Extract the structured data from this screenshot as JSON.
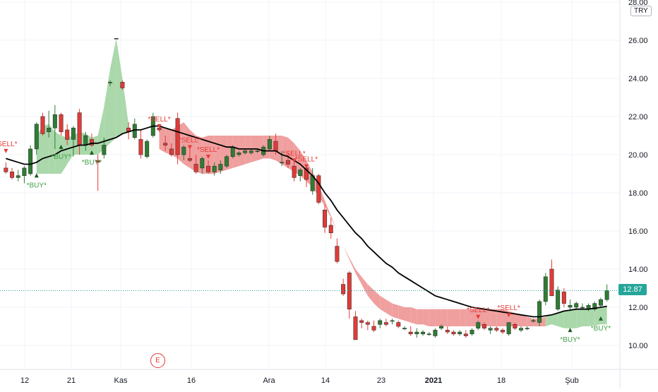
{
  "currency_badge": "TRY",
  "earnings_marker": "E",
  "colors": {
    "up": "#2e7d32",
    "down": "#e53935",
    "sell": "#e53935",
    "buy": "#43a047",
    "bull_band": "#a5d6a7",
    "bear_band": "#ef9a9a",
    "ma": "#000000",
    "price_tag": "#26a69a"
  },
  "chart_data": {
    "type": "candlestick",
    "title": "",
    "currency": "TRY",
    "ylim": [
      9.3,
      28.0
    ],
    "y_ticks": [
      "10.00",
      "12.00",
      "14.00",
      "16.00",
      "18.00",
      "20.00",
      "22.00",
      "24.00",
      "26.00",
      "28.00"
    ],
    "x_ticks": [
      "12",
      "21",
      "Kas",
      "16",
      "Ara",
      "14",
      "23",
      "2021",
      "18",
      "Şub"
    ],
    "bold_x_ticks": [
      "2021"
    ],
    "last_price": "12.87",
    "last_price_value": 12.87,
    "grid": true,
    "candles": [
      [
        19.3,
        19.6,
        19.0,
        19.1
      ],
      [
        19.1,
        19.3,
        18.7,
        18.8
      ],
      [
        18.8,
        19.2,
        18.6,
        18.9
      ],
      [
        18.9,
        19.4,
        18.5,
        19.3
      ],
      [
        19.0,
        20.5,
        18.9,
        20.3
      ],
      [
        20.3,
        21.7,
        20.0,
        21.6
      ],
      [
        22.0,
        22.2,
        21.0,
        21.1
      ],
      [
        21.2,
        22.3,
        20.9,
        21.4
      ],
      [
        21.4,
        22.6,
        20.3,
        22.1
      ],
      [
        22.1,
        22.2,
        21.0,
        21.2
      ],
      [
        21.3,
        21.6,
        20.5,
        20.8
      ],
      [
        20.8,
        21.5,
        19.9,
        21.4
      ],
      [
        22.2,
        22.4,
        20.0,
        20.5
      ],
      [
        20.5,
        21.2,
        20.2,
        21.0
      ],
      [
        20.8,
        21.1,
        20.4,
        20.5
      ],
      [
        19.7,
        20.0,
        18.1,
        19.6
      ],
      [
        20.0,
        20.9,
        19.8,
        20.5
      ],
      [
        23.8,
        23.9,
        23.6,
        23.8
      ],
      [
        26.1,
        26.1,
        26.1,
        26.1
      ],
      [
        23.8,
        23.9,
        23.4,
        23.5
      ],
      [
        21.4,
        21.7,
        20.8,
        21.2
      ],
      [
        20.9,
        21.9,
        20.8,
        21.6
      ],
      [
        20.8,
        21.3,
        19.8,
        20.0
      ],
      [
        19.9,
        20.8,
        19.8,
        20.7
      ],
      [
        21.0,
        22.2,
        20.9,
        22.0
      ],
      [
        21.4,
        21.6,
        21.2,
        21.3
      ],
      [
        20.6,
        21.0,
        20.2,
        20.5
      ],
      [
        20.3,
        20.6,
        19.9,
        20.0
      ],
      [
        21.9,
        22.2,
        19.5,
        20.0
      ],
      [
        20.0,
        20.5,
        19.7,
        20.4
      ],
      [
        19.8,
        20.5,
        19.6,
        19.7
      ],
      [
        19.5,
        20.0,
        19.0,
        19.1
      ],
      [
        19.3,
        19.9,
        19.0,
        19.8
      ],
      [
        19.4,
        19.7,
        19.0,
        19.1
      ],
      [
        19.1,
        19.6,
        18.9,
        19.4
      ],
      [
        19.2,
        19.7,
        19.0,
        19.5
      ],
      [
        19.4,
        20.0,
        19.3,
        19.9
      ],
      [
        19.9,
        20.5,
        19.8,
        20.4
      ],
      [
        20.0,
        20.2,
        19.9,
        20.1
      ],
      [
        20.1,
        20.3,
        20.0,
        20.2
      ],
      [
        20.1,
        20.3,
        20.0,
        20.2
      ],
      [
        20.2,
        20.3,
        20.1,
        20.2
      ],
      [
        20.0,
        20.5,
        19.9,
        20.4
      ],
      [
        20.3,
        21.0,
        20.2,
        20.8
      ],
      [
        20.7,
        21.1,
        20.0,
        20.2
      ],
      [
        19.6,
        20.2,
        19.4,
        19.6
      ],
      [
        19.7,
        20.1,
        19.3,
        19.5
      ],
      [
        19.4,
        19.7,
        18.6,
        18.8
      ],
      [
        18.9,
        19.3,
        18.6,
        19.2
      ],
      [
        19.3,
        19.5,
        18.3,
        18.7
      ],
      [
        18.1,
        19.3,
        17.9,
        18.9
      ],
      [
        18.9,
        19.0,
        17.4,
        17.5
      ],
      [
        17.1,
        17.4,
        15.9,
        16.2
      ],
      [
        16.3,
        16.7,
        15.6,
        15.9
      ],
      [
        15.2,
        15.6,
        14.3,
        14.4
      ],
      [
        13.2,
        13.5,
        12.6,
        12.7
      ],
      [
        13.8,
        13.9,
        11.4,
        11.9
      ],
      [
        11.5,
        11.8,
        10.3,
        10.3
      ],
      [
        11.3,
        11.4,
        10.9,
        11.2
      ],
      [
        11.2,
        11.3,
        10.8,
        11.1
      ],
      [
        11.0,
        11.3,
        10.7,
        10.8
      ],
      [
        11.1,
        11.4,
        10.9,
        11.3
      ],
      [
        11.2,
        11.4,
        11.0,
        11.1
      ],
      [
        11.3,
        11.4,
        11.1,
        11.3
      ],
      [
        11.2,
        11.3,
        10.9,
        11.0
      ],
      [
        10.9,
        11.0,
        10.8,
        10.9
      ],
      [
        10.7,
        11.0,
        10.5,
        10.6
      ],
      [
        10.6,
        10.9,
        10.4,
        10.7
      ],
      [
        10.6,
        10.8,
        10.5,
        10.7
      ],
      [
        10.6,
        10.7,
        10.5,
        10.6
      ],
      [
        10.5,
        10.9,
        10.4,
        10.8
      ],
      [
        10.9,
        11.1,
        10.8,
        11.0
      ],
      [
        10.8,
        11.0,
        10.6,
        10.7
      ],
      [
        10.7,
        10.8,
        10.5,
        10.6
      ],
      [
        10.6,
        10.8,
        10.5,
        10.7
      ],
      [
        10.6,
        10.8,
        10.4,
        10.5
      ],
      [
        10.6,
        10.9,
        10.5,
        10.8
      ],
      [
        10.9,
        11.3,
        10.8,
        11.2
      ],
      [
        11.1,
        11.2,
        10.8,
        10.9
      ],
      [
        10.8,
        11.0,
        10.6,
        10.9
      ],
      [
        10.9,
        11.0,
        10.7,
        10.8
      ],
      [
        10.8,
        10.9,
        10.6,
        10.7
      ],
      [
        10.6,
        11.2,
        10.5,
        11.2
      ],
      [
        11.1,
        11.2,
        10.8,
        10.9
      ],
      [
        10.8,
        11.0,
        10.7,
        10.9
      ],
      [
        10.9,
        11.0,
        10.8,
        10.9
      ],
      [
        11.3,
        11.4,
        11.2,
        11.3
      ],
      [
        11.2,
        12.4,
        11.0,
        12.3
      ],
      [
        12.3,
        13.8,
        12.1,
        13.6
      ],
      [
        14.0,
        14.5,
        12.6,
        12.6
      ],
      [
        11.9,
        13.1,
        11.8,
        12.9
      ],
      [
        12.8,
        13.0,
        12.0,
        12.2
      ],
      [
        12.0,
        12.4,
        11.8,
        12.1
      ],
      [
        12.0,
        12.3,
        11.9,
        12.2
      ],
      [
        12.0,
        12.2,
        11.9,
        12.0
      ],
      [
        11.9,
        12.2,
        11.8,
        12.1
      ],
      [
        11.9,
        12.3,
        11.8,
        12.2
      ],
      [
        12.1,
        12.5,
        12.0,
        12.4
      ],
      [
        12.4,
        13.2,
        12.3,
        12.87
      ]
    ],
    "moving_average": [
      19.8,
      19.7,
      19.6,
      19.5,
      19.5,
      19.6,
      19.8,
      19.9,
      20.0,
      20.2,
      20.3,
      20.4,
      20.5,
      20.5,
      20.6,
      20.6,
      20.7,
      20.8,
      20.9,
      21.1,
      21.2,
      21.3,
      21.3,
      21.4,
      21.5,
      21.5,
      21.4,
      21.3,
      21.2,
      21.1,
      21.0,
      20.9,
      20.8,
      20.7,
      20.6,
      20.5,
      20.4,
      20.4,
      20.3,
      20.3,
      20.3,
      20.3,
      20.2,
      20.2,
      20.2,
      20.0,
      19.9,
      19.7,
      19.5,
      19.2,
      18.9,
      18.5,
      18.0,
      17.6,
      17.1,
      16.7,
      16.3,
      15.9,
      15.6,
      15.2,
      14.9,
      14.6,
      14.3,
      14.1,
      13.8,
      13.6,
      13.4,
      13.2,
      13.0,
      12.8,
      12.6,
      12.5,
      12.4,
      12.3,
      12.2,
      12.1,
      12.0,
      11.95,
      11.9,
      11.85,
      11.8,
      11.75,
      11.7,
      11.65,
      11.6,
      11.55,
      11.5,
      11.5,
      11.55,
      11.6,
      11.7,
      11.8,
      11.85,
      11.9,
      11.9,
      11.9,
      11.95,
      12.0,
      12.05
    ],
    "band_upper": [
      20.8,
      20.6,
      20.4,
      20.3,
      20.2,
      21.0,
      21.5,
      21.6,
      21.2,
      21.0,
      20.9,
      21.0,
      21.2,
      21.1,
      20.9,
      21.0,
      22.5,
      24.5,
      26.1,
      24.0,
      21.6,
      21.6,
      21.5,
      21.5,
      21.7,
      21.6,
      21.4,
      21.3,
      21.5,
      21.7,
      21.3,
      21.0,
      20.9,
      21.0,
      21.0,
      21.0,
      21.0,
      21.0,
      21.0,
      21.0,
      21.0,
      21.0,
      21.0,
      21.0,
      21.0,
      21.0,
      20.9,
      20.6,
      20.2,
      19.7,
      19.1,
      18.4,
      17.6,
      16.8,
      16.0,
      15.2,
      14.6,
      14.0,
      13.6,
      13.2,
      12.9,
      12.6,
      12.4,
      12.2,
      12.1,
      12.0,
      12.0,
      11.9,
      11.9,
      11.9,
      11.9,
      11.9,
      11.9,
      11.9,
      11.9,
      11.9,
      11.9,
      11.9,
      11.9,
      11.9,
      11.9,
      11.9,
      11.8,
      11.7,
      11.6,
      11.5,
      11.4,
      11.4,
      11.5,
      11.6,
      11.7,
      11.8,
      11.85,
      11.9,
      11.9,
      11.9,
      11.95,
      12.0,
      12.05
    ],
    "band_lower": [
      19.2,
      19.0,
      18.8,
      18.8,
      18.8,
      19.0,
      19.0,
      19.0,
      19.0,
      19.0,
      19.5,
      20.0,
      20.0,
      20.0,
      20.0,
      20.0,
      20.3,
      20.6,
      20.9,
      21.1,
      21.2,
      21.3,
      21.1,
      20.8,
      20.5,
      20.3,
      20.1,
      20.0,
      19.8,
      19.5,
      19.3,
      19.1,
      19.0,
      19.0,
      19.0,
      19.1,
      19.2,
      19.3,
      19.4,
      19.5,
      19.6,
      19.7,
      19.8,
      19.8,
      19.7,
      19.5,
      19.3,
      19.1,
      18.9,
      18.6,
      18.3,
      17.8,
      17.3,
      16.7,
      16.0,
      15.2,
      14.5,
      13.8,
      13.2,
      12.6,
      12.2,
      11.9,
      11.7,
      11.5,
      11.4,
      11.3,
      11.2,
      11.1,
      11.1,
      11.0,
      11.0,
      11.0,
      11.0,
      11.0,
      11.0,
      11.0,
      11.0,
      11.0,
      11.0,
      11.0,
      11.0,
      11.0,
      11.0,
      11.0,
      11.0,
      11.0,
      11.0,
      11.0,
      11.0,
      11.1,
      11.0,
      10.9,
      10.9,
      10.9,
      11.0,
      11.0,
      11.05,
      11.1,
      11.1
    ],
    "band_sign": [
      0,
      0,
      0,
      0,
      0,
      1,
      1,
      1,
      1,
      1,
      1,
      1,
      1,
      1,
      1,
      1,
      1,
      1,
      1,
      1,
      0,
      0,
      0,
      0,
      0,
      -1,
      -1,
      -1,
      -1,
      -1,
      -1,
      -1,
      -1,
      -1,
      -1,
      -1,
      -1,
      -1,
      -1,
      -1,
      -1,
      -1,
      -1,
      -1,
      -1,
      -1,
      -1,
      -1,
      -1,
      -1,
      -1,
      -1,
      -1,
      -1,
      -1,
      -1,
      -1,
      -1,
      -1,
      -1,
      -1,
      -1,
      -1,
      -1,
      -1,
      -1,
      -1,
      -1,
      -1,
      -1,
      -1,
      -1,
      -1,
      -1,
      -1,
      -1,
      -1,
      -1,
      -1,
      -1,
      -1,
      -1,
      -1,
      -1,
      -1,
      -1,
      -1,
      -1,
      1,
      1,
      1,
      1,
      1,
      1,
      1,
      1,
      1,
      1,
      1
    ],
    "signals": [
      {
        "label": "*SELL*",
        "type": "sell",
        "i": 0,
        "price": 20.3
      },
      {
        "label": "*BUY*",
        "type": "buy",
        "i": 5,
        "price": 18.8
      },
      {
        "label": "*BUY*",
        "type": "buy",
        "i": 9,
        "price": 20.3
      },
      {
        "label": "*BUY*",
        "type": "buy",
        "i": 14,
        "price": 20.0
      },
      {
        "label": "*SELL*",
        "type": "sell",
        "i": 25,
        "price": 21.6
      },
      {
        "label": "*SELL*",
        "type": "sell",
        "i": 30,
        "price": 20.5
      },
      {
        "label": "*SELL*",
        "type": "sell",
        "i": 33,
        "price": 20.0
      },
      {
        "label": "*SELL*",
        "type": "sell",
        "i": 47,
        "price": 19.8
      },
      {
        "label": "*SELL*",
        "type": "sell",
        "i": 49,
        "price": 19.5
      },
      {
        "label": "*SELL*",
        "type": "sell",
        "i": 77,
        "price": 11.6
      },
      {
        "label": "*SELL*",
        "type": "sell",
        "i": 82,
        "price": 11.7
      },
      {
        "label": "*BUY*",
        "type": "buy",
        "i": 92,
        "price": 10.7
      },
      {
        "label": "*BUY*",
        "type": "buy",
        "i": 97,
        "price": 11.3
      }
    ]
  }
}
